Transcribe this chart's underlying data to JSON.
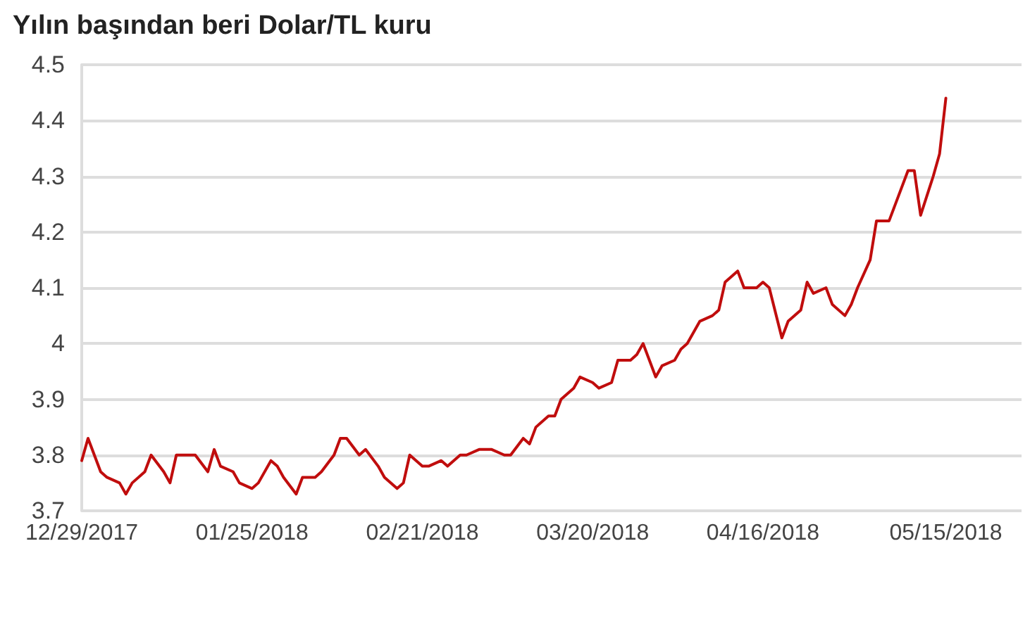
{
  "chart_data": {
    "type": "line",
    "title": "Yılın başından beri Dolar/TL kuru",
    "x": [
      "2017-12-29",
      "2017-12-30",
      "2018-01-01",
      "2018-01-02",
      "2018-01-04",
      "2018-01-05",
      "2018-01-06",
      "2018-01-08",
      "2018-01-09",
      "2018-01-11",
      "2018-01-12",
      "2018-01-13",
      "2018-01-15",
      "2018-01-16",
      "2018-01-18",
      "2018-01-19",
      "2018-01-20",
      "2018-01-22",
      "2018-01-23",
      "2018-01-25",
      "2018-01-26",
      "2018-01-28",
      "2018-01-29",
      "2018-01-30",
      "2018-02-01",
      "2018-02-02",
      "2018-02-04",
      "2018-02-05",
      "2018-02-07",
      "2018-02-08",
      "2018-02-09",
      "2018-02-11",
      "2018-02-12",
      "2018-02-14",
      "2018-02-15",
      "2018-02-17",
      "2018-02-18",
      "2018-02-19",
      "2018-02-21",
      "2018-02-22",
      "2018-02-24",
      "2018-02-25",
      "2018-02-27",
      "2018-02-28",
      "2018-03-02",
      "2018-03-04",
      "2018-03-06",
      "2018-03-07",
      "2018-03-09",
      "2018-03-10",
      "2018-03-11",
      "2018-03-13",
      "2018-03-14",
      "2018-03-15",
      "2018-03-17",
      "2018-03-18",
      "2018-03-20",
      "2018-03-21",
      "2018-03-23",
      "2018-03-24",
      "2018-03-26",
      "2018-03-27",
      "2018-03-28",
      "2018-03-30",
      "2018-03-31",
      "2018-04-02",
      "2018-04-03",
      "2018-04-04",
      "2018-04-06",
      "2018-04-08",
      "2018-04-09",
      "2018-04-10",
      "2018-04-12",
      "2018-04-13",
      "2018-04-15",
      "2018-04-16",
      "2018-04-17",
      "2018-04-19",
      "2018-04-20",
      "2018-04-22",
      "2018-04-23",
      "2018-04-24",
      "2018-04-26",
      "2018-04-27",
      "2018-04-29",
      "2018-04-30",
      "2018-05-01",
      "2018-05-03",
      "2018-05-04",
      "2018-05-06",
      "2018-05-07",
      "2018-05-09",
      "2018-05-10",
      "2018-05-11",
      "2018-05-13",
      "2018-05-14",
      "2018-05-15"
    ],
    "series": [
      {
        "color": "#c00d0d",
        "values": [
          3.79,
          3.83,
          3.77,
          3.76,
          3.75,
          3.73,
          3.75,
          3.77,
          3.8,
          3.77,
          3.75,
          3.8,
          3.8,
          3.8,
          3.77,
          3.81,
          3.78,
          3.77,
          3.75,
          3.74,
          3.75,
          3.79,
          3.78,
          3.76,
          3.73,
          3.76,
          3.76,
          3.77,
          3.8,
          3.83,
          3.83,
          3.8,
          3.81,
          3.78,
          3.76,
          3.74,
          3.75,
          3.8,
          3.78,
          3.78,
          3.79,
          3.78,
          3.8,
          3.8,
          3.81,
          3.81,
          3.8,
          3.8,
          3.83,
          3.82,
          3.85,
          3.87,
          3.87,
          3.9,
          3.92,
          3.94,
          3.93,
          3.92,
          3.93,
          3.97,
          3.97,
          3.98,
          4.0,
          3.94,
          3.96,
          3.97,
          3.99,
          4.0,
          4.04,
          4.05,
          4.06,
          4.11,
          4.13,
          4.1,
          4.1,
          4.11,
          4.1,
          4.01,
          4.04,
          4.06,
          4.11,
          4.09,
          4.1,
          4.07,
          4.05,
          4.07,
          4.1,
          4.15,
          4.22,
          4.22,
          4.25,
          4.31,
          4.31,
          4.23,
          4.3,
          4.34,
          4.44
        ]
      }
    ],
    "xlim": [
      "2017-12-29",
      "2018-05-27"
    ],
    "xticks": [
      {
        "value": "2017-12-29",
        "label": "12/29/2017"
      },
      {
        "value": "2018-01-25",
        "label": "01/25/2018"
      },
      {
        "value": "2018-02-21",
        "label": "02/21/2018"
      },
      {
        "value": "2018-03-20",
        "label": "03/20/2018"
      },
      {
        "value": "2018-04-16",
        "label": "04/16/2018"
      },
      {
        "value": "2018-05-15",
        "label": "05/15/2018"
      }
    ],
    "ylim": [
      3.7,
      4.5
    ],
    "yticks": [
      3.7,
      3.8,
      3.9,
      4,
      4.1,
      4.2,
      4.3,
      4.4,
      4.5
    ],
    "grid": "y",
    "marker": "none",
    "line_style": "solid"
  }
}
